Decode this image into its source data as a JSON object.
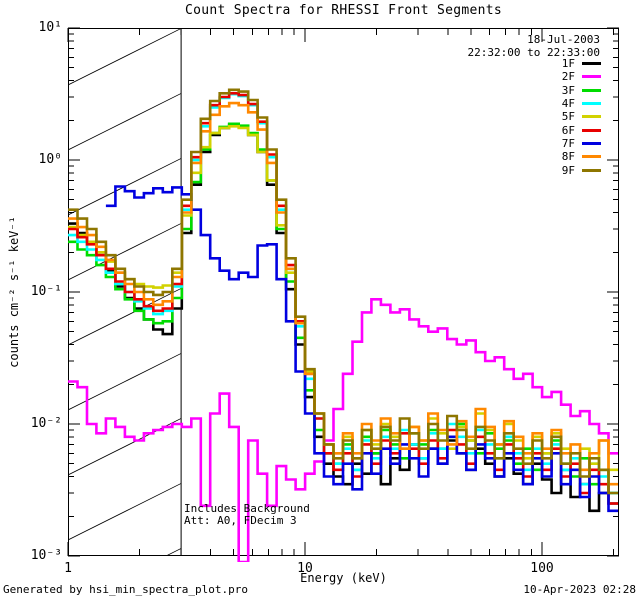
{
  "header": {
    "title": "Count Spectra for RHESSI Front Segments"
  },
  "annotations": {
    "date": "18-Jul-2003",
    "time_range": "22:32:00 to 22:33:00",
    "note_line1": "Includes Background",
    "note_line2": "Att: A0, FDecim 3"
  },
  "footer": {
    "generated_by": "Generated by hsi_min_spectra_plot.pro",
    "timestamp": "10-Apr-2023 02:28"
  },
  "axes": {
    "xlabel": "Energy (keV)",
    "ylabel": "counts cm⁻² s⁻¹ keV⁻¹",
    "x_tick_labels": [
      "1",
      "10",
      "100"
    ],
    "y_tick_labels": [
      "10¹",
      "10⁰",
      "10⁻¹",
      "10⁻²",
      "10⁻³"
    ]
  },
  "legend": {
    "items": [
      {
        "label": "1F",
        "color": "#000000"
      },
      {
        "label": "2F",
        "color": "#FF00FF"
      },
      {
        "label": "3F",
        "color": "#00DC00"
      },
      {
        "label": "4F",
        "color": "#00FFFF"
      },
      {
        "label": "5F",
        "color": "#D2D200"
      },
      {
        "label": "6F",
        "color": "#E80000"
      },
      {
        "label": "7F",
        "color": "#0000E0"
      },
      {
        "label": "8F",
        "color": "#FF8800"
      },
      {
        "label": "9F",
        "color": "#8E7600"
      }
    ]
  },
  "chart_data": {
    "type": "line",
    "subtype": "stepped-histogram-spectra",
    "title": "Count Spectra for RHESSI Front Segments",
    "xlabel": "Energy (keV)",
    "ylabel": "counts cm^-2 s^-1 keV^-1",
    "x_scale": "log",
    "y_scale": "log",
    "xlim": [
      1,
      211
    ],
    "ylim": [
      0.001,
      10
    ],
    "grid": false,
    "legend_position": "upper-right-outside",
    "hatched_region": {
      "xmin": 1,
      "xmax": 3
    },
    "bins": {
      "start_log10": 0,
      "step_log10": 0.04,
      "count": 58
    },
    "series": [
      {
        "name": "1F",
        "color": "#000000",
        "values": [
          0.33,
          0.28,
          0.24,
          0.19,
          0.145,
          0.11,
          0.09,
          0.075,
          0.062,
          0.052,
          0.048,
          0.075,
          0.28,
          0.65,
          1.15,
          1.55,
          1.75,
          1.85,
          1.8,
          1.55,
          1.15,
          0.65,
          0.28,
          0.105,
          0.04,
          0.016,
          0.008,
          0.005,
          0.004,
          0.0035,
          0.005,
          0.0042,
          0.006,
          0.0035,
          0.0055,
          0.0045,
          0.007,
          0.0055,
          0.0065,
          0.005,
          0.0075,
          0.006,
          0.0045,
          0.0065,
          0.005,
          0.004,
          0.0055,
          0.0042,
          0.0035,
          0.005,
          0.0038,
          0.003,
          0.0045,
          0.0028,
          0.0035,
          0.0022,
          0.003,
          0.0025
        ]
      },
      {
        "name": "2F",
        "color": "#FF00FF",
        "values": [
          0.021,
          0.019,
          0.01,
          0.0085,
          0.011,
          0.0095,
          0.008,
          0.0075,
          0.0085,
          0.009,
          0.0095,
          0.01,
          0.0095,
          0.011,
          0.0024,
          0.012,
          0.017,
          0.0095,
          0.0009,
          0.0075,
          0.0042,
          0.0024,
          0.0048,
          0.0038,
          0.0032,
          0.0042,
          0.0052,
          0.0075,
          0.013,
          0.024,
          0.042,
          0.07,
          0.088,
          0.08,
          0.07,
          0.074,
          0.062,
          0.055,
          0.05,
          0.053,
          0.044,
          0.04,
          0.043,
          0.035,
          0.03,
          0.032,
          0.026,
          0.022,
          0.024,
          0.019,
          0.016,
          0.0175,
          0.014,
          0.0115,
          0.0125,
          0.01,
          0.0085,
          0.006
        ]
      },
      {
        "name": "3F",
        "color": "#00DC00",
        "values": [
          0.24,
          0.21,
          0.19,
          0.16,
          0.13,
          0.105,
          0.088,
          0.072,
          0.062,
          0.058,
          0.06,
          0.09,
          0.3,
          0.68,
          1.2,
          1.6,
          1.78,
          1.88,
          1.82,
          1.6,
          1.2,
          0.7,
          0.3,
          0.12,
          0.045,
          0.018,
          0.009,
          0.006,
          0.005,
          0.007,
          0.0045,
          0.008,
          0.006,
          0.009,
          0.007,
          0.0055,
          0.0085,
          0.007,
          0.009,
          0.0065,
          0.008,
          0.01,
          0.0075,
          0.006,
          0.0085,
          0.0065,
          0.0075,
          0.005,
          0.0065,
          0.0045,
          0.006,
          0.0075,
          0.005,
          0.004,
          0.0055,
          0.0035,
          0.0045,
          0.003
        ]
      },
      {
        "name": "4F",
        "color": "#00FFFF",
        "values": [
          0.27,
          0.24,
          0.21,
          0.175,
          0.14,
          0.115,
          0.1,
          0.085,
          0.075,
          0.068,
          0.072,
          0.11,
          0.42,
          1.0,
          1.8,
          2.5,
          2.95,
          3.15,
          3.05,
          2.6,
          1.9,
          1.05,
          0.42,
          0.15,
          0.055,
          0.022,
          0.011,
          0.006,
          0.005,
          0.0065,
          0.0045,
          0.0075,
          0.0055,
          0.008,
          0.0065,
          0.009,
          0.007,
          0.0055,
          0.0085,
          0.0065,
          0.01,
          0.008,
          0.006,
          0.009,
          0.007,
          0.0055,
          0.008,
          0.006,
          0.0045,
          0.0065,
          0.005,
          0.007,
          0.0045,
          0.0055,
          0.0035,
          0.005,
          0.004,
          0.003
        ]
      },
      {
        "name": "5F",
        "color": "#D2D200",
        "values": [
          0.31,
          0.27,
          0.24,
          0.2,
          0.17,
          0.14,
          0.125,
          0.115,
          0.11,
          0.108,
          0.112,
          0.14,
          0.38,
          0.8,
          1.25,
          1.6,
          1.75,
          1.8,
          1.75,
          1.55,
          1.15,
          0.7,
          0.32,
          0.14,
          0.06,
          0.025,
          0.012,
          0.007,
          0.006,
          0.008,
          0.0055,
          0.009,
          0.007,
          0.01,
          0.008,
          0.0065,
          0.0095,
          0.0075,
          0.011,
          0.0085,
          0.0065,
          0.0095,
          0.0075,
          0.012,
          0.009,
          0.007,
          0.01,
          0.0075,
          0.0055,
          0.008,
          0.006,
          0.0085,
          0.0065,
          0.0045,
          0.0065,
          0.005,
          0.0075,
          0.0045
        ]
      },
      {
        "name": "6F",
        "color": "#E80000",
        "values": [
          0.3,
          0.26,
          0.23,
          0.19,
          0.15,
          0.12,
          0.1,
          0.088,
          0.078,
          0.072,
          0.075,
          0.115,
          0.45,
          1.05,
          1.9,
          2.6,
          3.0,
          3.2,
          3.1,
          2.65,
          1.95,
          1.1,
          0.45,
          0.16,
          0.06,
          0.024,
          0.011,
          0.006,
          0.0045,
          0.006,
          0.004,
          0.007,
          0.005,
          0.0075,
          0.006,
          0.0085,
          0.0065,
          0.005,
          0.0075,
          0.0055,
          0.009,
          0.007,
          0.005,
          0.008,
          0.006,
          0.0045,
          0.007,
          0.0055,
          0.004,
          0.006,
          0.0045,
          0.0065,
          0.004,
          0.005,
          0.003,
          0.0045,
          0.0035,
          0.0025
        ]
      },
      {
        "name": "7F",
        "color": "#0000E0",
        "values": [
          null,
          null,
          null,
          null,
          0.45,
          0.63,
          0.58,
          0.52,
          0.56,
          0.61,
          0.57,
          0.62,
          0.55,
          0.42,
          0.27,
          0.18,
          0.145,
          0.125,
          0.14,
          0.13,
          0.225,
          0.23,
          0.125,
          0.06,
          0.025,
          0.012,
          0.006,
          0.004,
          0.0035,
          0.005,
          0.0032,
          0.006,
          0.0042,
          0.0065,
          0.005,
          0.007,
          0.0055,
          0.004,
          0.0065,
          0.005,
          0.008,
          0.006,
          0.0045,
          0.007,
          0.0055,
          0.004,
          0.006,
          0.0045,
          0.0035,
          0.0055,
          0.004,
          0.006,
          0.0035,
          0.0045,
          0.0028,
          0.004,
          0.003,
          0.0022
        ]
      },
      {
        "name": "8F",
        "color": "#FF8800",
        "values": [
          0.36,
          0.31,
          0.27,
          0.22,
          0.175,
          0.14,
          0.115,
          0.1,
          0.088,
          0.08,
          0.085,
          0.13,
          0.4,
          0.95,
          1.65,
          2.2,
          2.55,
          2.7,
          2.6,
          2.3,
          1.7,
          0.95,
          0.4,
          0.15,
          0.058,
          0.024,
          0.012,
          0.007,
          0.006,
          0.0085,
          0.006,
          0.01,
          0.0075,
          0.011,
          0.0085,
          0.0065,
          0.0095,
          0.0075,
          0.012,
          0.009,
          0.007,
          0.0105,
          0.008,
          0.013,
          0.0095,
          0.007,
          0.0105,
          0.008,
          0.006,
          0.0085,
          0.0065,
          0.009,
          0.006,
          0.007,
          0.0045,
          0.006,
          0.0075,
          0.0035
        ]
      },
      {
        "name": "9F",
        "color": "#8E7600",
        "values": [
          0.42,
          0.36,
          0.3,
          0.24,
          0.19,
          0.15,
          0.125,
          0.11,
          0.1,
          0.095,
          0.1,
          0.15,
          0.5,
          1.15,
          2.05,
          2.8,
          3.2,
          3.4,
          3.3,
          2.85,
          2.1,
          1.2,
          0.5,
          0.18,
          0.065,
          0.026,
          0.012,
          0.007,
          0.0055,
          0.0075,
          0.0055,
          0.009,
          0.0065,
          0.0095,
          0.0075,
          0.011,
          0.0085,
          0.0065,
          0.01,
          0.0075,
          0.0115,
          0.009,
          0.0065,
          0.0095,
          0.0075,
          0.0055,
          0.0085,
          0.0065,
          0.005,
          0.0075,
          0.0055,
          0.008,
          0.005,
          0.006,
          0.004,
          0.0055,
          0.0045,
          0.003
        ]
      }
    ]
  }
}
